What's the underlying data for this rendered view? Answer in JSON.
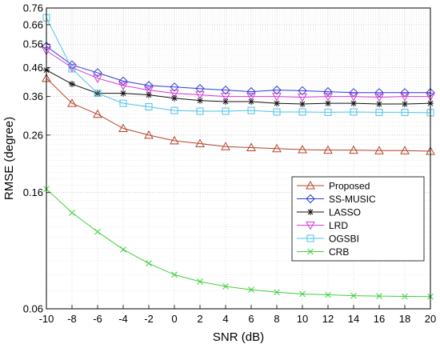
{
  "chart_data": {
    "type": "line",
    "title": "",
    "xlabel": "SNR (dB)",
    "ylabel": "RMSE (degree)",
    "x": [
      -10,
      -8,
      -6,
      -4,
      -2,
      0,
      2,
      4,
      6,
      8,
      10,
      12,
      14,
      16,
      18,
      20
    ],
    "xlim": [
      -10,
      20
    ],
    "ylim": [
      0.06,
      0.76
    ],
    "yscale": "log",
    "x_ticks": [
      "-10",
      "-8",
      "-6",
      "-4",
      "-2",
      "0",
      "2",
      "4",
      "6",
      "8",
      "10",
      "12",
      "14",
      "16",
      "18",
      "20"
    ],
    "y_ticks": [
      "0.06",
      "0.16",
      "0.26",
      "0.36",
      "0.46",
      "0.56",
      "0.66",
      "0.76"
    ],
    "grid": true,
    "legend_position": "bottom-right",
    "series": [
      {
        "name": "Proposed",
        "color": "#b5442a",
        "marker": "triangle-up",
        "values": [
          0.42,
          0.34,
          0.31,
          0.275,
          0.26,
          0.248,
          0.242,
          0.236,
          0.234,
          0.232,
          0.23,
          0.229,
          0.229,
          0.228,
          0.228,
          0.227
        ]
      },
      {
        "name": "SS-MUSIC",
        "color": "#2d3fd6",
        "marker": "diamond",
        "values": [
          0.55,
          0.47,
          0.44,
          0.41,
          0.395,
          0.39,
          0.385,
          0.38,
          0.375,
          0.38,
          0.378,
          0.375,
          0.372,
          0.372,
          0.372,
          0.372
        ]
      },
      {
        "name": "LASSO",
        "color": "#111111",
        "marker": "asterisk",
        "values": [
          0.45,
          0.4,
          0.37,
          0.37,
          0.365,
          0.355,
          0.348,
          0.345,
          0.345,
          0.34,
          0.338,
          0.34,
          0.34,
          0.338,
          0.338,
          0.34
        ]
      },
      {
        "name": "LRD",
        "color": "#d43ad4",
        "marker": "triangle-down",
        "values": [
          0.53,
          0.46,
          0.42,
          0.395,
          0.38,
          0.37,
          0.365,
          0.36,
          0.36,
          0.36,
          0.358,
          0.36,
          0.36,
          0.358,
          0.36,
          0.36
        ]
      },
      {
        "name": "OGSBI",
        "color": "#4fc3e6",
        "marker": "square",
        "values": [
          0.7,
          0.455,
          0.37,
          0.34,
          0.33,
          0.32,
          0.318,
          0.318,
          0.32,
          0.316,
          0.316,
          0.315,
          0.316,
          0.315,
          0.315,
          0.314
        ]
      },
      {
        "name": "CRB",
        "color": "#3fcf3f",
        "marker": "x",
        "values": [
          0.165,
          0.135,
          0.115,
          0.099,
          0.088,
          0.08,
          0.0755,
          0.0725,
          0.0705,
          0.069,
          0.068,
          0.0675,
          0.067,
          0.0668,
          0.0666,
          0.0665
        ]
      }
    ]
  }
}
